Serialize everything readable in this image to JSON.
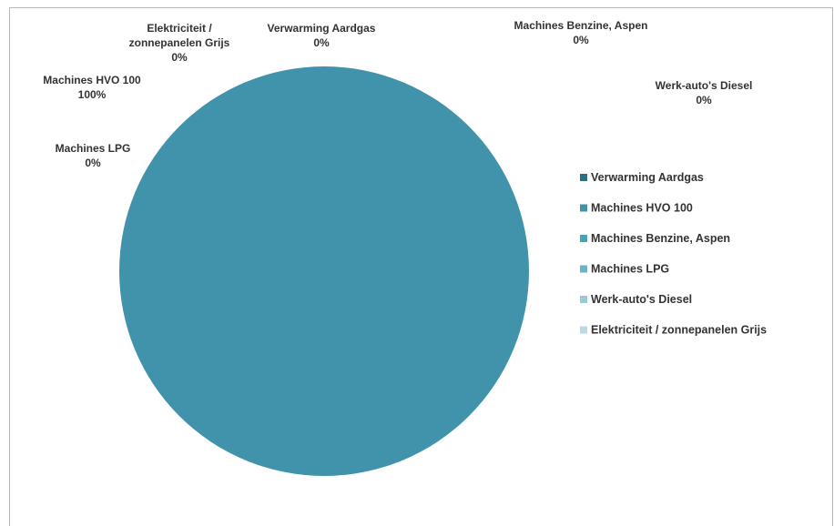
{
  "chart_data": {
    "type": "pie",
    "title": "",
    "legend_position": "right",
    "slices": [
      {
        "name": "Verwarming Aardgas",
        "value": 0,
        "label": "0%",
        "color": "#2e6f85",
        "label_lines": [
          "Verwarming Aardgas",
          "0%"
        ]
      },
      {
        "name": "Machines HVO 100",
        "value": 100,
        "label": "100%",
        "color": "#4093ab",
        "label_lines": [
          "Machines HVO 100",
          "100%"
        ]
      },
      {
        "name": "Machines Benzine, Aspen",
        "value": 0,
        "label": "0%",
        "color": "#46a3b5",
        "label_lines": [
          "Machines Benzine, Aspen",
          "0%"
        ]
      },
      {
        "name": "Machines LPG",
        "value": 0,
        "label": "0%",
        "color": "#6ab3c9",
        "label_lines": [
          "Machines LPG",
          "0%"
        ]
      },
      {
        "name": "Werk-auto's Diesel",
        "value": 0,
        "label": "0%",
        "color": "#9cc9d8",
        "label_lines": [
          "Werk-auto's Diesel",
          "0%"
        ]
      },
      {
        "name": "Elektriciteit / zonnepanelen Grijs",
        "value": 0,
        "label": "0%",
        "color": "#bcd9e3",
        "label_lines": [
          "Elektriciteit /",
          "zonnepanelen Grijs",
          "0%"
        ]
      }
    ]
  }
}
